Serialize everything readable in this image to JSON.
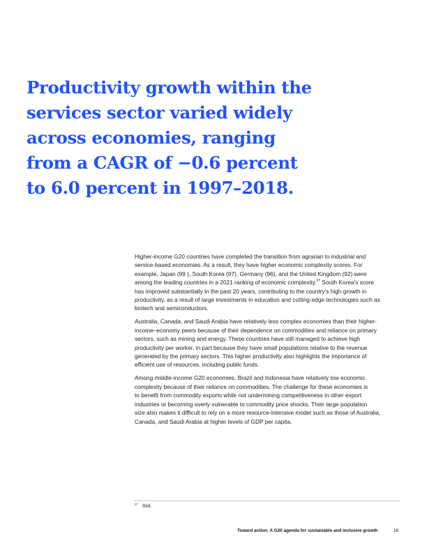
{
  "pull_quote": {
    "lines": [
      "Productivity growth within the",
      "services sector varied widely",
      "across economies, ranging",
      "from a CAGR of −0.6 percent",
      "to 6.0 percent in 1997–2018."
    ]
  },
  "body": {
    "paragraph_1": {
      "lines": [
        "Higher-income G20 countries have completed the transition from agrarian to industrial and",
        "service-based economies. As a result, they have higher economic complexity scores. For",
        "example, Japan (99 ), South Korea (97), Germany (96), and the United Kingdom (92) were"
      ],
      "line_4_before_ref": "among the leading countries in a 2021 ranking of economic complexity.",
      "footnote_ref": "27",
      "line_4_after_ref": " South Korea’s score",
      "lines_after": [
        "has improved substantially in the past 20 years, contributing to the country’s high growth in",
        "productivity, as a result of large investments in education and cutting-edge technologies such as",
        "biotech and semiconductors."
      ]
    },
    "paragraph_2": {
      "lines": [
        "Australia, Canada, and Saudi Arabia have relatively less complex economies than their higher-",
        "income–economy peers because of their dependence on commodities and reliance on primary",
        "sectors, such as mining and energy. These countries have still managed to achieve high",
        "productivity per worker, in part because they have small populations relative to the revenue",
        "generated by the primary sectors. This higher productivity also highlights the importance of",
        "efficient use of resources, including public funds."
      ]
    },
    "paragraph_3": {
      "lines": [
        "Among middle-income G20 economies, Brazil and Indonesia have relatively low economic",
        "complexity because of their reliance on commodities. The challenge for these economies is",
        "to benefit from commodity exports while not undermining competitiveness in other export",
        "industries or becoming overly vulnerable to commodity price shocks. Their large population",
        "size also makes it difficult to rely on a more resource-intensive model such as those of Australia,",
        "Canada, and Saudi Arabia at higher levels of GDP per capita."
      ]
    }
  },
  "footnote": {
    "number": "27",
    "text": "Ibid."
  },
  "footer": {
    "running_title": "Toward action: A G20 agenda for sustainable and inclusive growth",
    "page_number": "16"
  },
  "colors": {
    "pull_quote": "#2251ff",
    "body_text": "#222222",
    "rule": "#c8c8c8"
  }
}
